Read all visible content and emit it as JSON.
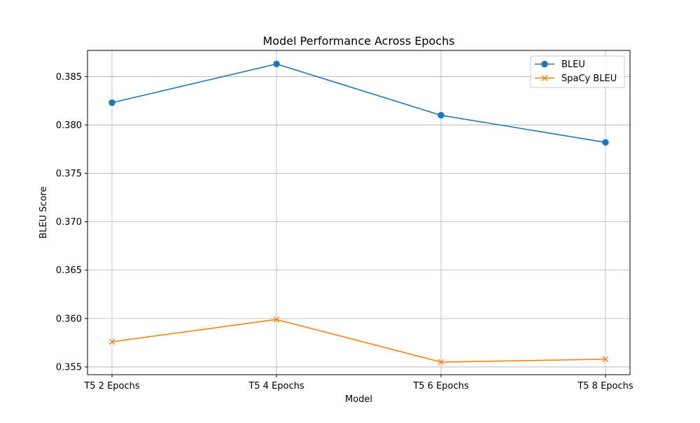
{
  "chart_data": {
    "type": "line",
    "title": "Model Performance Across Epochs",
    "xlabel": "Model",
    "ylabel": "BLEU Score",
    "categories": [
      "T5 2 Epochs",
      "T5 4 Epochs",
      "T5 6 Epochs",
      "T5 8 Epochs"
    ],
    "ylim": [
      0.3542,
      0.3877
    ],
    "yticks": [
      0.355,
      0.36,
      0.365,
      0.37,
      0.375,
      0.38,
      0.385
    ],
    "ytick_labels": [
      "0.355",
      "0.360",
      "0.365",
      "0.370",
      "0.375",
      "0.380",
      "0.385"
    ],
    "grid": true,
    "legend_position": "top-right",
    "series": [
      {
        "name": "BLEU",
        "values": [
          0.3823,
          0.3863,
          0.381,
          0.3782
        ],
        "color": "#1f77b4",
        "marker": "circle"
      },
      {
        "name": "SpaCy BLEU",
        "values": [
          0.3576,
          0.3599,
          0.3555,
          0.3558
        ],
        "color": "#ff7f0e",
        "marker": "x"
      }
    ]
  }
}
